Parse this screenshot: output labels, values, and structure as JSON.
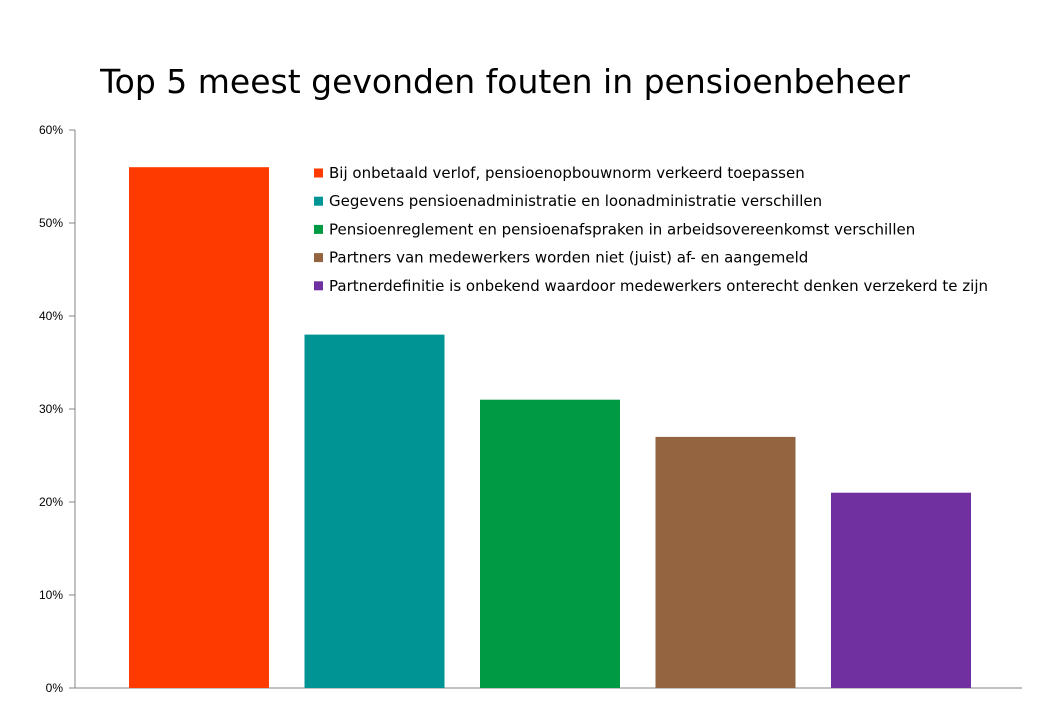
{
  "chart_data": {
    "type": "bar",
    "title": "Top 5 meest gevonden fouten in pensioenbeheer",
    "xlabel": "",
    "ylabel": "",
    "ylim": [
      0,
      0.6
    ],
    "ytick_values": [
      0,
      0.1,
      0.2,
      0.3,
      0.4,
      0.5,
      0.6
    ],
    "ytick_labels": [
      "0%",
      "10%",
      "20%",
      "30%",
      "40%",
      "50%",
      "60%"
    ],
    "grid": false,
    "legend_placement": "top-right",
    "series": [
      {
        "name": "Bij onbetaald verlof, pensioenopbouwnorm verkeerd toepassen",
        "value": 0.56,
        "color": "#FF3A00"
      },
      {
        "name": "Gegevens pensioenadministratie en loonadministratie verschillen",
        "value": 0.38,
        "color": "#009494"
      },
      {
        "name": "Pensioenreglement en pensioenafspraken in arbeidsovereenkomst verschillen",
        "value": 0.31,
        "color": "#009A44"
      },
      {
        "name": "Partners van medewerkers worden niet (juist) af- en aangemeld",
        "value": 0.27,
        "color": "#946440"
      },
      {
        "name": "Partnerdefinitie is onbekend waardoor medewerkers onterecht denken verzekerd te zijn",
        "value": 0.21,
        "color": "#7030A0"
      }
    ]
  }
}
